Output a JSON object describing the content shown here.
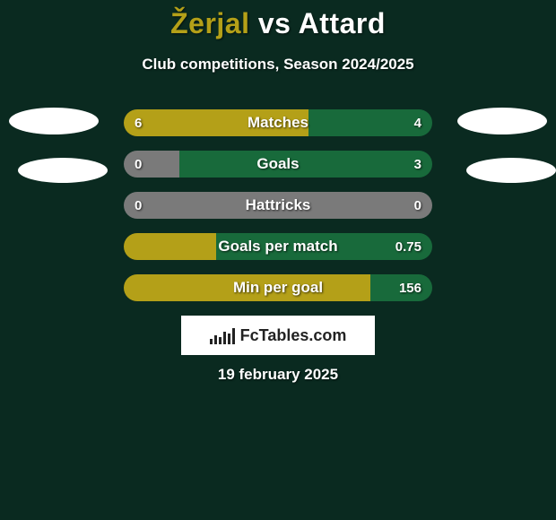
{
  "background_color": "#0a2a20",
  "text_color": "#ffffff",
  "title": {
    "player1": "Žerjal",
    "vs": " vs ",
    "player2": "Attard",
    "player1_color": "#b4a018",
    "vs_color": "#ffffff",
    "player2_color": "#ffffff",
    "fontsize": 32
  },
  "subtitle": {
    "text": "Club competitions, Season 2024/2025",
    "fontsize": 17
  },
  "colors": {
    "left_series": "#b4a018",
    "right_series": "#186a3b",
    "neutral": "#7a7a7a"
  },
  "rows": [
    {
      "label": "Matches",
      "left": "6",
      "right": "4",
      "left_pct": 60,
      "right_pct": 40,
      "left_color": "#b4a018",
      "right_color": "#186a3b"
    },
    {
      "label": "Goals",
      "left": "0",
      "right": "3",
      "left_pct": 18,
      "right_pct": 82,
      "left_color": "#7a7a7a",
      "right_color": "#186a3b"
    },
    {
      "label": "Hattricks",
      "left": "0",
      "right": "0",
      "left_pct": 100,
      "right_pct": 0,
      "left_color": "#7a7a7a",
      "right_color": "#7a7a7a"
    },
    {
      "label": "Goals per match",
      "left": "",
      "right": "0.75",
      "left_pct": 30,
      "right_pct": 70,
      "left_color": "#b4a018",
      "right_color": "#186a3b"
    },
    {
      "label": "Min per goal",
      "left": "",
      "right": "156",
      "left_pct": 80,
      "right_pct": 20,
      "left_color": "#b4a018",
      "right_color": "#186a3b"
    }
  ],
  "logo": {
    "text1": "Fc",
    "text2": "Tables",
    "text3": ".com"
  },
  "date": "19 february 2025"
}
